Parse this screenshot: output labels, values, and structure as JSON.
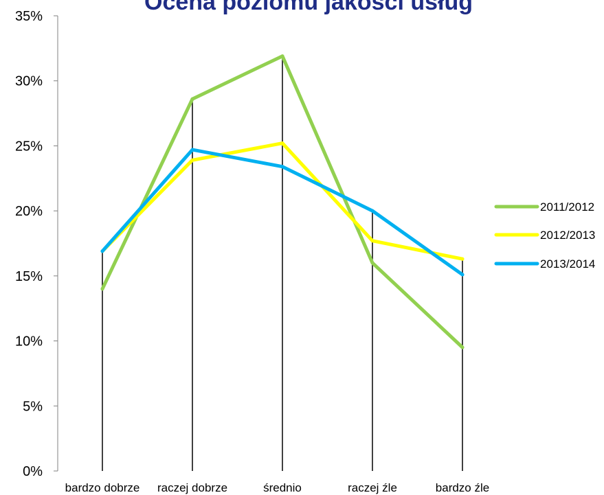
{
  "chart_data": {
    "type": "line",
    "title": "Ocena poziomu jakości usług",
    "title_color": "#1F2D86",
    "categories": [
      "bardzo dobrze",
      "raczej dobrze",
      "średnio",
      "raczej źle",
      "bardzo źle"
    ],
    "ylim": [
      0,
      35
    ],
    "yticks": [
      0,
      5,
      10,
      15,
      20,
      25,
      30,
      35
    ],
    "ytick_labels": [
      "0%",
      "5%",
      "10%",
      "15%",
      "20%",
      "25%",
      "30%",
      "35%"
    ],
    "y_unit": "%",
    "grid": false,
    "drop_lines": true,
    "legend_position": "right",
    "series": [
      {
        "name": "2011/2012",
        "color": "#92D050",
        "values": [
          14.0,
          28.6,
          31.9,
          16.0,
          9.5
        ]
      },
      {
        "name": "2012/2013",
        "color": "#FFFF00",
        "values": [
          16.9,
          23.9,
          25.2,
          17.7,
          16.3
        ]
      },
      {
        "name": "2013/2014",
        "color": "#00B0F0",
        "values": [
          16.9,
          24.7,
          23.4,
          20.0,
          15.1
        ]
      }
    ]
  }
}
